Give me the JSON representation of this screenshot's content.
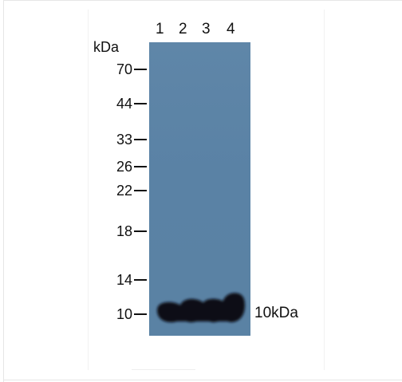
{
  "lanes": [
    "1",
    "2",
    "3",
    "4"
  ],
  "unit": "kDa",
  "markers": [
    "70",
    "44",
    "33",
    "26",
    "22",
    "18",
    "14",
    "10"
  ],
  "band_label": "10kDa",
  "colors": {
    "membrane": "#5a82a5",
    "band": "#0d0d12",
    "text": "#111111"
  }
}
